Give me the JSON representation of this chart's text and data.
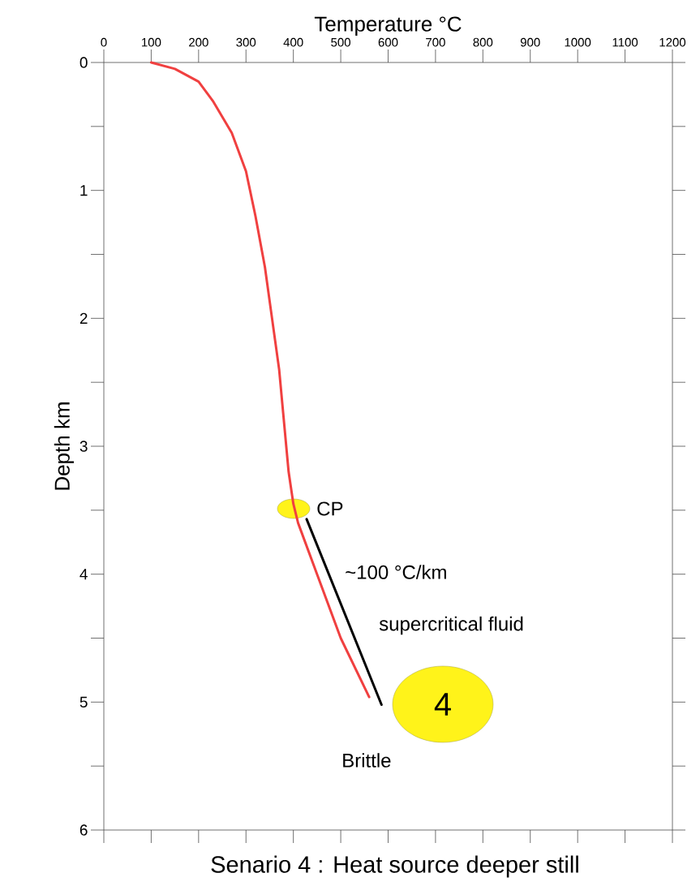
{
  "chart_data": {
    "type": "line",
    "title": "Senario 4 : Heat source deeper still",
    "xlabel": "Temperature °C",
    "ylabel": "Depth km",
    "xlim": [
      0,
      1200
    ],
    "xticks": [
      0,
      100,
      200,
      300,
      400,
      500,
      600,
      700,
      800,
      900,
      1000,
      1100,
      1200
    ],
    "ylim": [
      6,
      0
    ],
    "yticks": [
      0,
      {
        "value": 0.5,
        "label": null
      },
      1,
      {
        "value": 1.5,
        "label": null
      },
      2,
      {
        "value": 2.5,
        "label": null
      },
      3,
      {
        "value": 3.5,
        "label": null
      },
      4,
      {
        "value": 4.5,
        "label": null
      },
      5,
      {
        "value": 5.5,
        "label": null
      },
      6
    ],
    "marker": "none",
    "line_style": "solid",
    "grid": false,
    "series": [
      {
        "color": "#f04040",
        "x": [
          100,
          150,
          200,
          230,
          270,
          300,
          320,
          340,
          355,
          370,
          380,
          390,
          400,
          410,
          450,
          500,
          560
        ],
        "values": [
          0,
          0.05,
          0.15,
          0.3,
          0.55,
          0.85,
          1.2,
          1.6,
          2.0,
          2.4,
          2.8,
          3.2,
          3.45,
          3.6,
          4.0,
          4.5,
          4.96
        ]
      },
      {
        "color": "#000000",
        "x": [
          428,
          586
        ],
        "values": [
          3.57,
          5.02
        ]
      }
    ],
    "annotations": [
      "CP",
      "~100 °C/km",
      "supercritical fluid",
      "4",
      "Brittle"
    ]
  }
}
